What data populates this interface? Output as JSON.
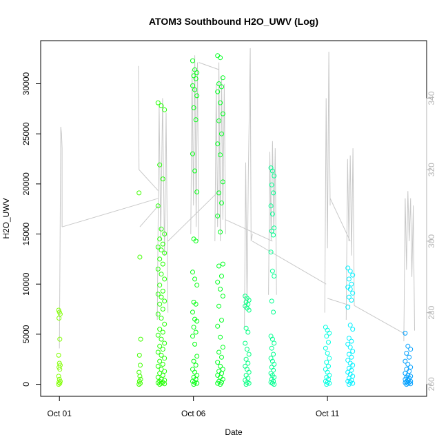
{
  "chart_data": {
    "type": "scatter",
    "title": "ATOM3 Southbound H2O_UWV (Log)",
    "xlabel": "Date",
    "ylabel": "H2O_UWV",
    "x_unit": "day of October",
    "xlim": [
      0.3,
      14.7
    ],
    "ylim": [
      -1200,
      34300
    ],
    "y2lim": [
      256.6,
      356.1
    ],
    "x_ticks": [
      {
        "value": 1,
        "label": "Oct 01"
      },
      {
        "value": 6,
        "label": "Oct 06"
      },
      {
        "value": 11,
        "label": "Oct 11"
      }
    ],
    "y_ticks": [
      {
        "value": 0,
        "label": "0"
      },
      {
        "value": 5000,
        "label": "5000"
      },
      {
        "value": 10000,
        "label": "10000"
      },
      {
        "value": 15000,
        "label": "15000"
      },
      {
        "value": 20000,
        "label": "20000"
      },
      {
        "value": 25000,
        "label": "25000"
      },
      {
        "value": 30000,
        "label": "30000"
      }
    ],
    "y2_ticks": [
      {
        "value": 260,
        "label": "260"
      },
      {
        "value": 280,
        "label": "280"
      },
      {
        "value": 300,
        "label": "300"
      },
      {
        "value": 320,
        "label": "320"
      },
      {
        "value": 340,
        "label": "340"
      }
    ],
    "grid": false,
    "legend": "none",
    "colors": {
      "line": "#c8c8c8",
      "axis": "#000000",
      "right_axis": "#b3b3b3"
    },
    "point_groups": [
      {
        "x": 1.0,
        "spread": 0.03,
        "color": "#80ff00",
        "values": [
          7400,
          7200,
          7000,
          6600,
          4500,
          2900,
          2100,
          1900,
          1700,
          1500,
          800,
          500,
          300,
          200,
          100,
          0
        ]
      },
      {
        "x": 4.0,
        "spread": 0.03,
        "color": "#40ff00",
        "values": [
          19100,
          12700,
          4500,
          2900,
          1900,
          1200,
          800,
          500,
          300,
          100,
          0
        ]
      },
      {
        "x": 4.8,
        "spread": 0.12,
        "color": "#20ff00",
        "values": [
          28100,
          27800,
          27400,
          21900,
          20500,
          17800,
          15500,
          15000,
          14500,
          14000,
          13700,
          13400,
          13100,
          12500,
          12000,
          11500,
          11000,
          10500,
          9900,
          9300,
          9000,
          8700,
          8300,
          8000,
          7500,
          7000,
          6600,
          6000,
          5500,
          5200,
          4900,
          4500,
          4100,
          3800,
          3500,
          3200,
          2900,
          2600,
          2300,
          2000,
          1800,
          1500,
          1300,
          1100,
          900,
          700,
          500,
          400,
          300,
          200,
          150,
          100,
          50,
          0
        ]
      },
      {
        "x": 6.05,
        "spread": 0.08,
        "color": "#00ff10",
        "values": [
          32300,
          31400,
          31100,
          30800,
          30500,
          29800,
          29400,
          28800,
          27600,
          26400,
          23000,
          21300,
          19200,
          14500,
          14300,
          11200,
          10500,
          9900,
          8200,
          8000,
          7200,
          6500,
          6300,
          5700,
          5200,
          4800,
          4000,
          2800,
          2300,
          1900,
          1500,
          1200,
          900,
          700,
          500,
          300,
          200,
          100,
          0
        ]
      },
      {
        "x": 7.0,
        "spread": 0.1,
        "color": "#00ff20",
        "values": [
          32800,
          32600,
          30600,
          30000,
          29700,
          29200,
          28100,
          27000,
          26300,
          25000,
          24000,
          22900,
          20200,
          19100,
          18100,
          16800,
          15200,
          12000,
          11800,
          10800,
          10200,
          9500,
          8800,
          7800,
          6400,
          5800,
          4700,
          3700,
          3200,
          2700,
          2200,
          1800,
          1500,
          1300,
          1100,
          900,
          700,
          500,
          300,
          200,
          100,
          0
        ]
      },
      {
        "x": 8.0,
        "spread": 0.07,
        "color": "#00ff80",
        "values": [
          8800,
          8600,
          8400,
          8200,
          8000,
          7800,
          7600,
          7400,
          5600,
          5200,
          4100,
          3500,
          3000,
          2500,
          2100,
          1800,
          1500,
          1200,
          900,
          600,
          400,
          200,
          100,
          0
        ]
      },
      {
        "x": 8.95,
        "spread": 0.06,
        "color": "#00ff90",
        "values": [
          21600,
          21300,
          20800,
          19900,
          19100,
          17800,
          17000,
          15600,
          15300,
          14900,
          13200,
          11300,
          10800,
          8300,
          7200,
          4800,
          4500,
          4100,
          3600,
          3000,
          2600,
          2300,
          2000,
          1700,
          1400,
          1100,
          900,
          700,
          500,
          300,
          200,
          100,
          0
        ]
      },
      {
        "x": 11.0,
        "spread": 0.07,
        "color": "#00ffe0",
        "values": [
          5700,
          5400,
          5100,
          4800,
          4200,
          3600,
          3100,
          2600,
          2200,
          1800,
          1500,
          1200,
          900,
          700,
          500,
          300,
          200,
          100,
          0
        ]
      },
      {
        "x": 11.85,
        "spread": 0.09,
        "color": "#00f0ff",
        "values": [
          11600,
          11300,
          10900,
          10500,
          10000,
          9700,
          9500,
          9100,
          8700,
          8400,
          7700,
          5900,
          5500,
          4600,
          4300,
          4000,
          3700,
          3300,
          3000,
          2700,
          2400,
          2100,
          1900,
          1600,
          1400,
          1200,
          1000,
          800,
          600,
          400,
          300,
          200,
          100,
          0
        ]
      },
      {
        "x": 14.0,
        "spread": 0.1,
        "color": "#00a0ff",
        "values": [
          5100,
          3800,
          3500,
          3100,
          2700,
          2300,
          2000,
          1700,
          1500,
          1300,
          1100,
          900,
          800,
          700,
          600,
          500,
          400,
          300,
          250,
          200,
          150,
          100,
          50,
          0
        ]
      }
    ],
    "line_segments": [
      {
        "points": [
          [
            1.0,
            270.0
          ],
          [
            1.05,
            332.0
          ],
          [
            1.08,
            330.0
          ],
          [
            1.1,
            326.0
          ],
          [
            1.1,
            304.0
          ]
        ]
      },
      {
        "points": [
          [
            1.1,
            304.0
          ],
          [
            4.7,
            312.0
          ]
        ]
      },
      {
        "points": [
          [
            3.95,
            349.0
          ],
          [
            3.97,
            320.0
          ],
          [
            4.7,
            314.0
          ]
        ]
      },
      {
        "points": [
          [
            4.0,
            304.0
          ],
          [
            4.7,
            310.0
          ]
        ]
      },
      {
        "points": [
          [
            4.65,
            278.0
          ],
          [
            4.72,
            338.0
          ],
          [
            4.78,
            300.0
          ],
          [
            4.85,
            340.0
          ],
          [
            4.92,
            296.0
          ],
          [
            4.98,
            336.0
          ],
          [
            5.05,
            280.0
          ]
        ]
      },
      {
        "points": [
          [
            5.05,
            300.0
          ],
          [
            6.95,
            314.0
          ]
        ]
      },
      {
        "points": [
          [
            5.9,
            302.0
          ],
          [
            5.95,
            348.0
          ],
          [
            6.0,
            310.0
          ],
          [
            6.05,
            352.0
          ],
          [
            6.1,
            304.0
          ],
          [
            6.15,
            350.0
          ],
          [
            6.2,
            300.0
          ]
        ]
      },
      {
        "points": [
          [
            6.2,
            350.0
          ],
          [
            6.95,
            348.0
          ]
        ]
      },
      {
        "points": [
          [
            6.8,
            300.0
          ],
          [
            6.85,
            344.0
          ],
          [
            6.9,
            304.0
          ],
          [
            6.95,
            350.0
          ],
          [
            7.0,
            300.0
          ],
          [
            7.05,
            346.0
          ],
          [
            7.1,
            306.0
          ],
          [
            7.15,
            344.0
          ],
          [
            7.2,
            302.0
          ]
        ]
      },
      {
        "points": [
          [
            7.2,
            306.0
          ],
          [
            8.95,
            300.0
          ]
        ]
      },
      {
        "points": [
          [
            7.9,
            276.0
          ],
          [
            7.95,
            322.0
          ],
          [
            8.0,
            282.0
          ],
          [
            8.05,
            320.0
          ],
          [
            8.12,
            354.0
          ],
          [
            8.15,
            300.0
          ],
          [
            8.2,
            302.0
          ]
        ]
      },
      {
        "points": [
          [
            8.2,
            300.0
          ],
          [
            10.95,
            288.0
          ]
        ]
      },
      {
        "points": [
          [
            8.8,
            285.0
          ],
          [
            8.85,
            325.0
          ],
          [
            8.9,
            300.0
          ],
          [
            8.95,
            328.0
          ],
          [
            9.0,
            302.0
          ],
          [
            9.05,
            326.0
          ],
          [
            9.1,
            285.0
          ]
        ]
      },
      {
        "points": [
          [
            10.9,
            280.0
          ],
          [
            10.95,
            340.0
          ],
          [
            11.0,
            298.0
          ],
          [
            11.05,
            353.0
          ],
          [
            11.1,
            310.0
          ]
        ]
      },
      {
        "points": [
          [
            11.1,
            312.0
          ],
          [
            11.85,
            300.0
          ]
        ]
      },
      {
        "points": [
          [
            11.0,
            284.0
          ],
          [
            11.85,
            282.0
          ]
        ]
      },
      {
        "points": [
          [
            11.7,
            278.0
          ],
          [
            11.75,
            323.0
          ],
          [
            11.8,
            300.0
          ],
          [
            11.85,
            324.0
          ],
          [
            11.9,
            296.0
          ],
          [
            11.95,
            326.0
          ],
          [
            12.0,
            282.0
          ]
        ]
      },
      {
        "points": [
          [
            12.0,
            282.0
          ],
          [
            13.9,
            274.0
          ]
        ]
      },
      {
        "points": [
          [
            13.85,
            272.0
          ],
          [
            13.9,
            312.0
          ],
          [
            13.95,
            292.0
          ],
          [
            14.0,
            314.0
          ],
          [
            14.05,
            300.0
          ],
          [
            14.1,
            312.0
          ],
          [
            14.15,
            290.0
          ],
          [
            14.2,
            310.0
          ],
          [
            14.25,
            275.0
          ]
        ]
      }
    ]
  }
}
